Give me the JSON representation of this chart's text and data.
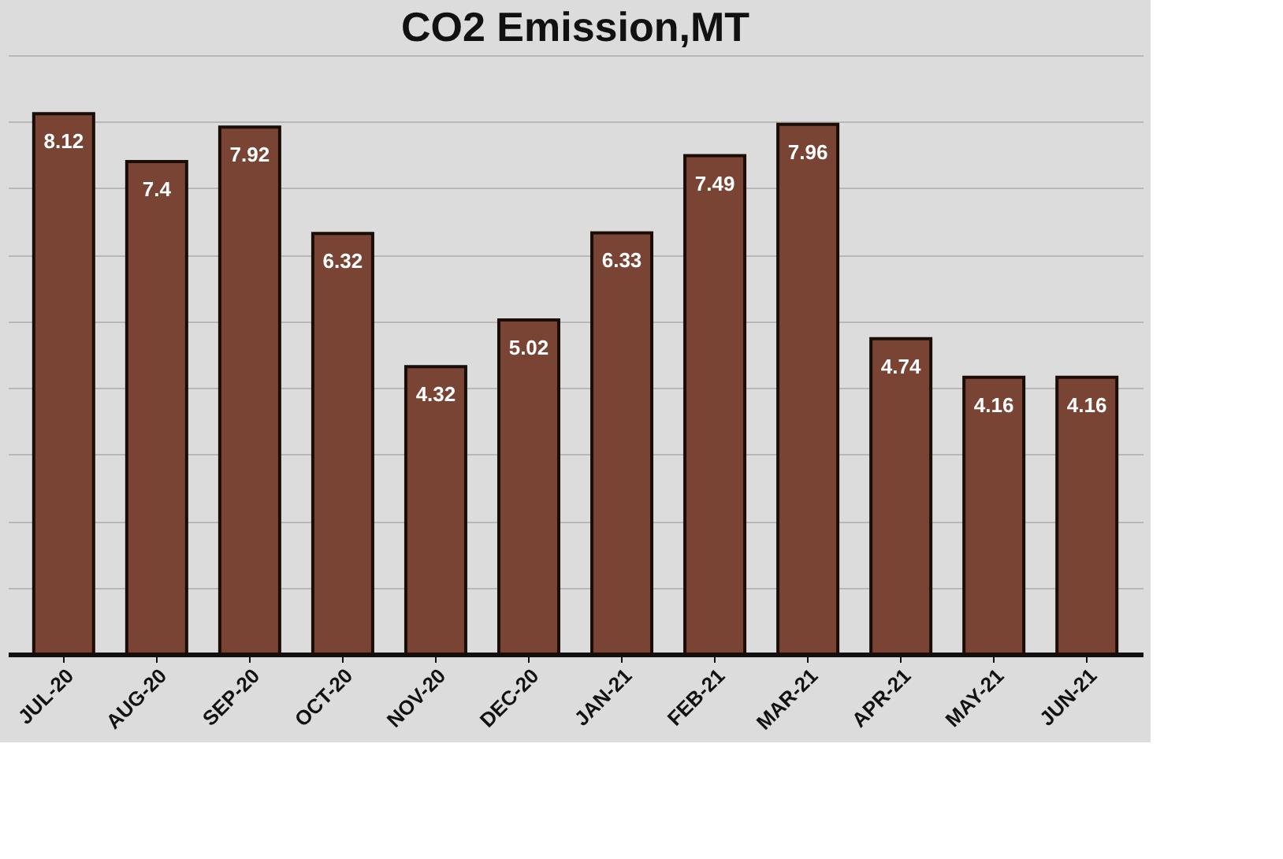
{
  "chart_data": {
    "type": "bar",
    "title": "CO2 Emission,MT",
    "categories": [
      "JUL-20",
      "AUG-20",
      "SEP-20",
      "OCT-20",
      "NOV-20",
      "DEC-20",
      "JAN-21",
      "FEB-21",
      "MAR-21",
      "APR-21",
      "MAY-21",
      "JUN-21"
    ],
    "values": [
      8.12,
      7.4,
      7.92,
      6.32,
      4.32,
      5.02,
      6.33,
      7.49,
      7.96,
      4.74,
      4.16,
      4.16
    ],
    "color": "#7a4434",
    "ylim": [
      0,
      9
    ],
    "yticks": [
      {
        "value": 0,
        "label": null
      },
      {
        "value": 1,
        "label": null
      },
      {
        "value": 2,
        "label": null
      },
      {
        "value": 3,
        "label": null
      },
      {
        "value": 4,
        "label": null
      },
      {
        "value": 5,
        "label": null
      },
      {
        "value": 6,
        "label": null
      },
      {
        "value": 7,
        "label": null
      },
      {
        "value": 8,
        "label": null
      },
      {
        "value": 9,
        "label": null
      }
    ],
    "grid": "y",
    "tick_labels": "x",
    "data_labels": true
  }
}
